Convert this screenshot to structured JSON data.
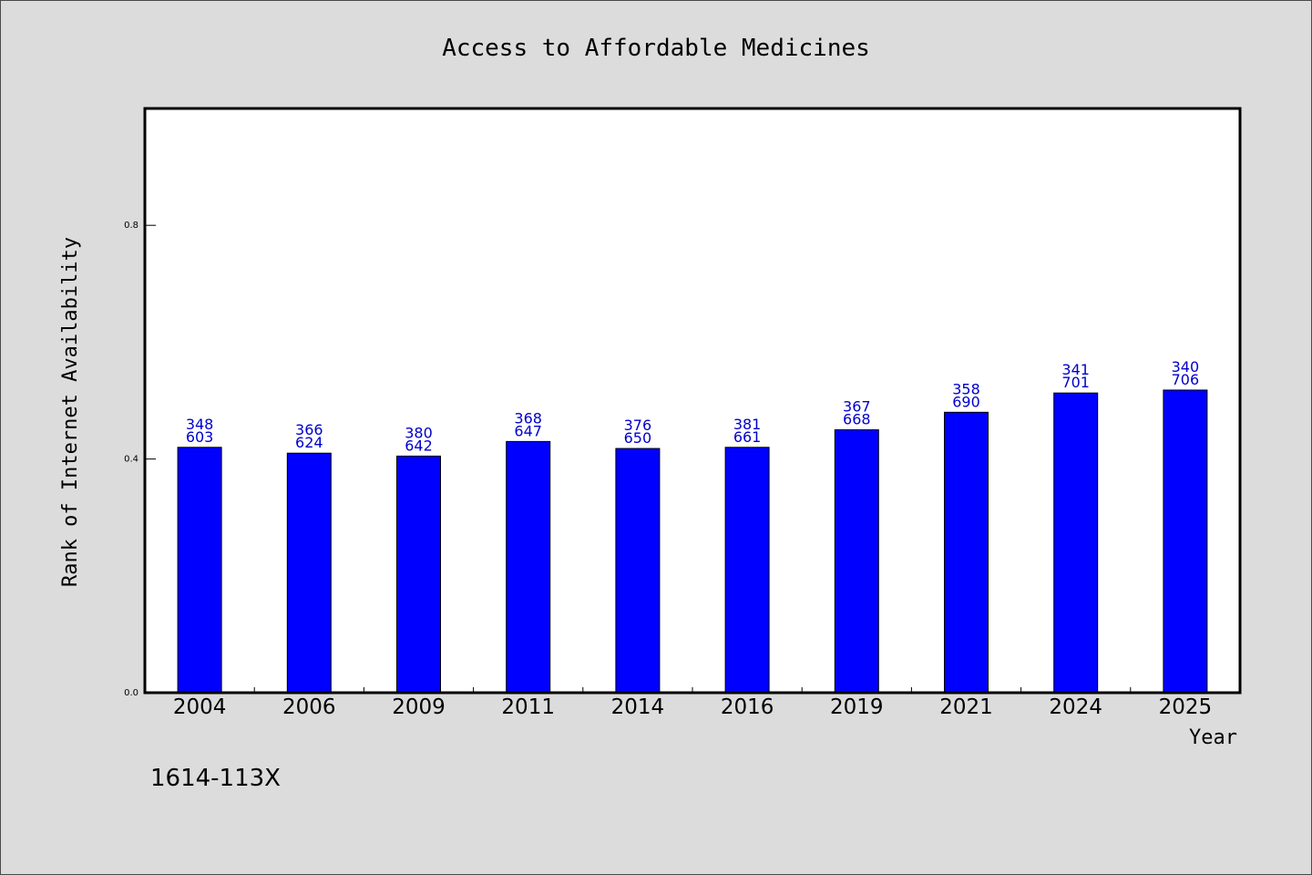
{
  "chart_data": {
    "type": "bar",
    "title": "Access to Affordable Medicines",
    "xlabel": "Year",
    "ylabel": "Rank of Internet Availability",
    "categories": [
      "2004",
      "2006",
      "2009",
      "2011",
      "2014",
      "2016",
      "2019",
      "2021",
      "2024",
      "2025"
    ],
    "values": [
      0.42,
      0.41,
      0.405,
      0.43,
      0.418,
      0.42,
      0.45,
      0.48,
      0.513,
      0.518
    ],
    "label_top": [
      "348",
      "366",
      "380",
      "368",
      "376",
      "381",
      "367",
      "358",
      "341",
      "340"
    ],
    "label_bottom": [
      "603",
      "624",
      "642",
      "647",
      "650",
      "661",
      "668",
      "690",
      "701",
      "706"
    ],
    "ylim": [
      0,
      1.0
    ],
    "yticks": [
      "0.0",
      "0.4",
      "0.8"
    ],
    "bar_color": "#0000ff",
    "label_color": "#0000cc",
    "grid": false,
    "legend": "none"
  },
  "footnote": "1614-113X"
}
